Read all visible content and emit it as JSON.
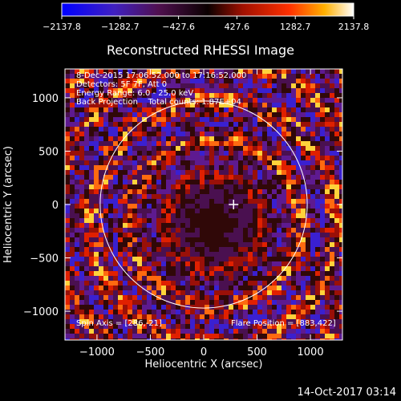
{
  "chart_data": {
    "type": "heatmap",
    "title": "Reconstructed RHESSI Image",
    "xlabel": "Heliocentric X (arcsec)",
    "ylabel": "Heliocentric Y (arcsec)",
    "xlim": [
      -1300,
      1300
    ],
    "ylim": [
      -1270,
      1270
    ],
    "x_ticks": [
      -1000,
      -500,
      0,
      500,
      1000
    ],
    "y_ticks": [
      -1000,
      -500,
      0,
      500,
      1000
    ],
    "colorbar": {
      "range": [
        -2137.8,
        2137.8
      ],
      "tick_values": [
        -2137.8,
        -1282.7,
        -427.6,
        427.6,
        1282.7,
        2137.8
      ],
      "tick_labels": [
        "−2137.8",
        "−1282.7",
        "−427.6",
        "427.6",
        "1282.7",
        "2137.8"
      ]
    },
    "info_lines": [
      "8-Dec-2015 17:06:52.000 to 17:16:52.000",
      "Detectors: 5F 7F, Att 0",
      "Energy Range: 6.0 - 25.0 keV",
      "Back Projection    Total counts: 1.87E+04"
    ],
    "spin_axis_label": "Spin Axis = [286,-21]",
    "flare_position_label": "Flare Position = [883,422]",
    "solar_disk": {
      "center": [
        0,
        0
      ],
      "radius_arcsec": 970
    },
    "center_marker": [
      280,
      0
    ],
    "colormap": "red-temperature diverging"
  },
  "footer": {
    "date": "14-Oct-2017 03:14"
  }
}
